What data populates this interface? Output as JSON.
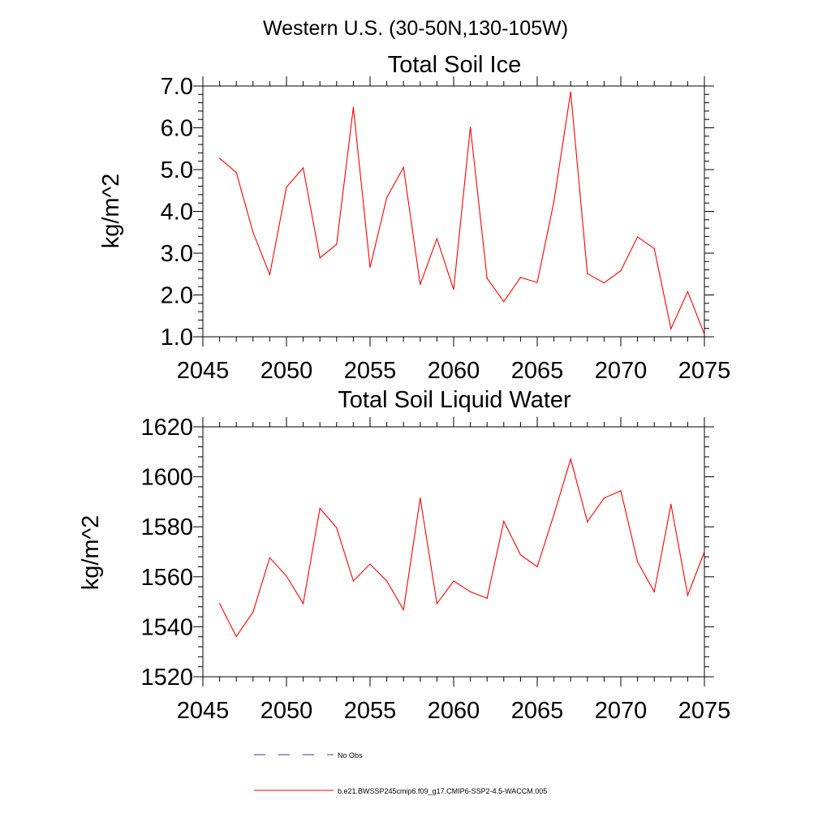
{
  "page_title": "Western U.S. (30-50N,130-105W)",
  "colors": {
    "series": "#ff0000",
    "obs": "#3b3b8c",
    "axis": "#000000"
  },
  "chart_data": [
    {
      "type": "line",
      "title": "Total Soil Ice",
      "xlabel": "",
      "ylabel": "kg/m^2",
      "xlim": [
        2045,
        2075
      ],
      "ylim": [
        1.0,
        7.0
      ],
      "x_ticks": [
        2045,
        2050,
        2055,
        2060,
        2065,
        2070,
        2075
      ],
      "x_tick_labels": [
        "2045",
        "2050",
        "2055",
        "2060",
        "2065",
        "2070",
        "2075"
      ],
      "y_ticks": [
        1.0,
        2.0,
        3.0,
        4.0,
        5.0,
        6.0,
        7.0
      ],
      "y_tick_labels": [
        "1.0",
        "2.0",
        "3.0",
        "4.0",
        "5.0",
        "6.0",
        "7.0"
      ],
      "grid": false,
      "x": [
        2046,
        2047,
        2048,
        2049,
        2050,
        2051,
        2052,
        2053,
        2054,
        2055,
        2056,
        2057,
        2058,
        2059,
        2060,
        2061,
        2062,
        2063,
        2064,
        2065,
        2066,
        2067,
        2068,
        2069,
        2070,
        2071,
        2072,
        2073,
        2074,
        2075
      ],
      "series": [
        {
          "name": "b.e21.BWSSP245cmip6.f09_g17.CMIP6-SSP2-4.5-WACCM.005",
          "values": [
            5.27,
            4.93,
            3.5,
            2.49,
            4.58,
            5.04,
            2.89,
            3.21,
            6.49,
            2.66,
            4.33,
            5.05,
            2.25,
            3.35,
            2.13,
            6.02,
            2.4,
            1.84,
            2.42,
            2.3,
            4.24,
            6.86,
            2.51,
            2.29,
            2.58,
            3.39,
            3.11,
            1.19,
            2.08,
            1.06
          ]
        }
      ]
    },
    {
      "type": "line",
      "title": "Total Soil Liquid Water",
      "xlabel": "",
      "ylabel": "kg/m^2",
      "xlim": [
        2045,
        2075
      ],
      "ylim": [
        1520,
        1620
      ],
      "x_ticks": [
        2045,
        2050,
        2055,
        2060,
        2065,
        2070,
        2075
      ],
      "x_tick_labels": [
        "2045",
        "2050",
        "2055",
        "2060",
        "2065",
        "2070",
        "2075"
      ],
      "y_ticks": [
        1520,
        1540,
        1560,
        1580,
        1600,
        1620
      ],
      "y_tick_labels": [
        "1520",
        "1540",
        "1560",
        "1580",
        "1600",
        "1620"
      ],
      "grid": false,
      "x": [
        2046,
        2047,
        2048,
        2049,
        2050,
        2051,
        2052,
        2053,
        2054,
        2055,
        2056,
        2057,
        2058,
        2059,
        2060,
        2061,
        2062,
        2063,
        2064,
        2065,
        2066,
        2067,
        2068,
        2069,
        2070,
        2071,
        2072,
        2073,
        2074,
        2075
      ],
      "series": [
        {
          "name": "b.e21.BWSSP245cmip6.f09_g17.CMIP6-SSP2-4.5-WACCM.005",
          "values": [
            1549.3,
            1536.1,
            1545.9,
            1567.6,
            1560.3,
            1549.3,
            1587.4,
            1579.6,
            1558.3,
            1565.1,
            1558.3,
            1546.8,
            1591.5,
            1549.3,
            1558.3,
            1554.0,
            1551.4,
            1582.2,
            1568.8,
            1564.0,
            1584.9,
            1607.1,
            1582.0,
            1591.5,
            1594.4,
            1566.0,
            1554.0,
            1589.0,
            1552.6,
            1570.0
          ]
        }
      ]
    }
  ],
  "legend": {
    "items": [
      {
        "label": "No Obs",
        "style": "dashed"
      },
      {
        "label": "b.e21.BWSSP245cmip6.f09_g17.CMIP6-SSP2-4.5-WACCM.005",
        "style": "solid"
      }
    ]
  }
}
